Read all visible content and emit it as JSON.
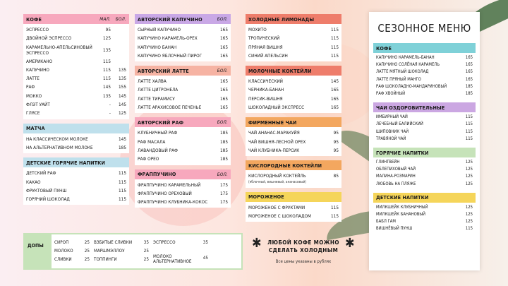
{
  "colors": {
    "pink": "#f7a8bd",
    "blue": "#bfe0ec",
    "purple": "#c9a8e6",
    "peach": "#f6b3a3",
    "red": "#ee7d6b",
    "orange": "#f3a75f",
    "yellow": "#f5d55a",
    "teal": "#7fd1d8",
    "violet": "#cba7e2",
    "green": "#c6e3b9"
  },
  "col1": [
    {
      "name": "КОФЕ",
      "color": "#f7a8bd",
      "sizes": [
        "МАЛ.",
        "БОЛ."
      ],
      "items": [
        {
          "name": "ЭСПРЕССО",
          "p1": "95",
          "p2": ""
        },
        {
          "name": "ДВОЙНОЙ ЭСПРЕССО",
          "p1": "125",
          "p2": ""
        },
        {
          "name": "КАРАМЕЛЬНО-АПЕЛЬСИНОВЫЙ ЭСПРЕССО",
          "p1": "135",
          "p2": "",
          "tall": true
        },
        {
          "name": "АМЕРИКАНО",
          "p1": "115",
          "p2": ""
        },
        {
          "name": "КАПУЧИНО",
          "p1": "115",
          "p2": "135"
        },
        {
          "name": "ЛАТТЕ",
          "p1": "115",
          "p2": "135"
        },
        {
          "name": "РАФ",
          "p1": "145",
          "p2": "155"
        },
        {
          "name": "МОККО",
          "p1": "135",
          "p2": "145"
        },
        {
          "name": "ФЛЭТ УАЙТ",
          "p1": "-",
          "p2": "145"
        },
        {
          "name": "ГЛЯСЕ",
          "p1": "-",
          "p2": "125"
        }
      ]
    },
    {
      "name": "МАТЧА",
      "color": "#bfe0ec",
      "sizes": [],
      "items": [
        {
          "name": "НА КЛАССИЧЕСКОМ МОЛОКЕ",
          "p1": "",
          "p2": "145"
        },
        {
          "name": "НА АЛЬТЕРНАТИВНОМ МОЛОКЕ",
          "p1": "",
          "p2": "185"
        }
      ]
    },
    {
      "name": "ДЕТСКИЕ ГОРЯЧИЕ НАПИТКИ",
      "color": "#bfe0ec",
      "sizes": [],
      "items": [
        {
          "name": "ДЕТСКИЙ РАФ",
          "p1": "",
          "p2": "115"
        },
        {
          "name": "КАКАО",
          "p1": "",
          "p2": "115"
        },
        {
          "name": "ФРУКТОВЫЙ ПУНШ",
          "p1": "",
          "p2": "115"
        },
        {
          "name": "ГОРЯЧИЙ ШОКОЛАД",
          "p1": "",
          "p2": "115"
        }
      ]
    }
  ],
  "col2": [
    {
      "name": "АВТОРСКИЙ КАПУЧИНО",
      "color": "#c9a8e6",
      "sizes": [
        "БОЛ."
      ],
      "items": [
        {
          "name": "СЫРНЫЙ КАПУЧИНО",
          "p2": "165"
        },
        {
          "name": "КАПУЧИНО КАРАМЕЛЬ-ОРЕХ",
          "p2": "165"
        },
        {
          "name": "КАПУЧИНО БАНАН",
          "p2": "165"
        },
        {
          "name": "КАПУЧИНО ЯБЛОЧНЫЙ ПИРОГ",
          "p2": "165"
        }
      ]
    },
    {
      "name": "АВТОРСКИЙ ЛАТТЕ",
      "color": "#f6b3a3",
      "sizes": [
        "БОЛ."
      ],
      "items": [
        {
          "name": "ЛАТТЕ ХАЛВА",
          "p2": "165"
        },
        {
          "name": "ЛАТТЕ ЦИТРОНЕЛА",
          "p2": "165"
        },
        {
          "name": "ЛАТТЕ ТИРАМИСУ",
          "p2": "165"
        },
        {
          "name": "ЛАТТЕ АРАХИСОВОЕ ПЕЧЕНЬЕ",
          "p2": "165"
        }
      ]
    },
    {
      "name": "АВТОРСКИЙ РАФ",
      "color": "#f7a8bd",
      "sizes": [
        "БОЛ."
      ],
      "items": [
        {
          "name": "КЛУБНИЧНЫЙ РАФ",
          "p2": "185"
        },
        {
          "name": "РАФ МАСАЛА",
          "p2": "185"
        },
        {
          "name": "ЛАВАНДОВЫЙ РАФ",
          "p2": "185"
        },
        {
          "name": "РАФ ОРЕО",
          "p2": "185"
        }
      ]
    },
    {
      "name": "ФРАППУЧИНО",
      "color": "#f7a8bd",
      "sizes": [
        "БОЛ."
      ],
      "items": [
        {
          "name": "ФРАППУЧИНО КАРАМЕЛЬНЫЙ",
          "p2": "175"
        },
        {
          "name": "ФРАППУЧИНО ОРЕХОВЫЙ",
          "p2": "175"
        },
        {
          "name": "ФРАППУЧИНО КЛУБНИКА-КОКОС",
          "p2": "175"
        }
      ]
    }
  ],
  "col3": [
    {
      "name": "ХОЛОДНЫЕ ЛИМОНАДЫ",
      "color": "#ee7d6b",
      "items": [
        {
          "name": "МОХИТО",
          "p2": "115"
        },
        {
          "name": "ТРОПИЧЕСКИЙ",
          "p2": "115"
        },
        {
          "name": "ПРЯНАЯ ВИШНЯ",
          "p2": "115"
        },
        {
          "name": "СИНИЙ АПЕЛЬСИН",
          "p2": "115"
        }
      ]
    },
    {
      "name": "МОЛОЧНЫЕ КОКТЕЙЛИ",
      "color": "#ee7d6b",
      "items": [
        {
          "name": "КЛАССИЧЕСКИЙ",
          "p2": "145"
        },
        {
          "name": "ЧЕРНИКА-БАНАН",
          "p2": "165"
        },
        {
          "name": "ПЕРСИК-ВИШНЯ",
          "p2": "165"
        },
        {
          "name": "ШОКОЛАДНЫЙ ЭКСПРЕСС",
          "p2": "165"
        }
      ]
    },
    {
      "name": "ФИРМЕННЫЕ ЧАИ",
      "color": "#f3a75f",
      "items": [
        {
          "name": "ЧАЙ АНАНАС-МАРАКУЙЯ",
          "p2": "95"
        },
        {
          "name": "ЧАЙ ВИШНЯ-ЛЕСНОЙ ОРЕХ",
          "p2": "95"
        },
        {
          "name": "ЧАЙ КЛУБНИКА-ПЕРСИК",
          "p2": "95"
        }
      ]
    },
    {
      "name": "КИСЛОРОДНЫЕ КОКТЕЙЛИ",
      "color": "#f3a75f",
      "items": [
        {
          "name": "КИСЛОРОДНЫЙ КОКТЕЙЛЬ",
          "p2": "85",
          "note": "(яблочный, вишневый, ананасовый)"
        }
      ]
    },
    {
      "name": "МОРОЖЕНОЕ",
      "color": "#f5d55a",
      "items": [
        {
          "name": "МОРОЖЕНОЕ С ФРУКТАМИ",
          "p2": "115"
        },
        {
          "name": "МОРОЖЕНОЕ С ШОКОЛАДОМ",
          "p2": "115"
        }
      ]
    }
  ],
  "seasonal": {
    "title": "СЕЗОННОЕ МЕНЮ",
    "sections": [
      {
        "name": "КОФЕ",
        "color": "#7fd1d8",
        "items": [
          {
            "name": "КАПУЧИНО КАРАМЕЛЬ-БАНАН",
            "p2": "165"
          },
          {
            "name": "КАПУЧИНО СОЛЁНАЯ КАРАМЕЛЬ",
            "p2": "165"
          },
          {
            "name": "ЛАТТЕ МЯТНЫЙ ШОКОЛАД",
            "p2": "165"
          },
          {
            "name": "ЛАТТЕ ПРЯНЫЙ МАНГО",
            "p2": "165"
          },
          {
            "name": "РАФ ШОКОЛАДНО-МАНДАРИНОВЫЙ",
            "p2": "185"
          },
          {
            "name": "РАФ ХВОЙНЫЙ",
            "p2": "185"
          }
        ]
      },
      {
        "name": "ЧАИ ОЗДОРОВИТЕЛЬНЫЕ",
        "color": "#cba7e2",
        "items": [
          {
            "name": "ИМБИРНЫЙ ЧАЙ",
            "p2": "115"
          },
          {
            "name": "ЛЕЧЕБНЫЙ БАЛИЙСКИЙ",
            "p2": "115"
          },
          {
            "name": "ШИПОВНИК ЧАЙ",
            "p2": "115"
          },
          {
            "name": "ТРАВЯНОЙ ЧАЙ",
            "p2": "115"
          }
        ]
      },
      {
        "name": "ГОРЯЧИЕ НАПИТКИ",
        "color": "#c6e3b9",
        "items": [
          {
            "name": "ГЛИНТВЕЙН",
            "p2": "125"
          },
          {
            "name": "ОБЛЕПИХОВЫЙ ЧАЙ",
            "p2": "125"
          },
          {
            "name": "МАЛИНА-РОЗМАРИН",
            "p2": "125"
          },
          {
            "name": "ЛЮБОВЬ НА ПЛЯЖЕ",
            "p2": "125"
          }
        ]
      },
      {
        "name": "ДЕТСКИЕ НАПИТКИ",
        "color": "#f5d55a",
        "items": [
          {
            "name": "МИЛКШЕЙК КЛУБНИЧНЫЙ",
            "p2": "125"
          },
          {
            "name": "МИЛКШЕЙК БАНАНОВЫЙ",
            "p2": "125"
          },
          {
            "name": "БАБЛ ГАМ",
            "p2": "125"
          },
          {
            "name": "ВИШНЁВЫЙ ПУНШ",
            "p2": "115"
          }
        ]
      }
    ]
  },
  "dopy": {
    "label": "ДОПЫ",
    "columns": [
      [
        {
          "name": "СИРОП",
          "price": "25"
        },
        {
          "name": "МОЛОКО",
          "price": "25"
        },
        {
          "name": "СЛИВКИ",
          "price": "25"
        }
      ],
      [
        {
          "name": "ВЗБИТЫЕ СЛИВКИ",
          "price": "35"
        },
        {
          "name": "МАРШМЭЛЛОУ",
          "price": "25"
        },
        {
          "name": "ТОППИНГИ",
          "price": "25"
        }
      ],
      [
        {
          "name": "ЭСПРЕССО",
          "price": "35"
        },
        {
          "name": "МОЛОКО АЛЬТЕРНАТИВНОЕ",
          "price": "45"
        }
      ]
    ]
  },
  "note": {
    "line1": "ЛЮБОЙ КОФЕ МОЖНО",
    "line2": "СДЕЛАТЬ ХОЛОДНЫМ",
    "sub": "Все цены указаны в рублях"
  }
}
